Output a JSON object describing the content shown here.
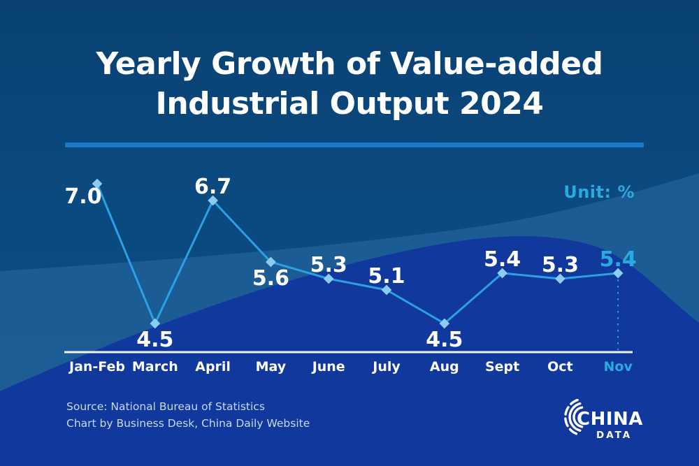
{
  "title": {
    "line1": "Yearly Growth of Value-added",
    "line2": "Industrial Output 2024"
  },
  "unit_label": "Unit: %",
  "chart_data": {
    "type": "line",
    "title": "Yearly Growth of Value-added Industrial Output 2024",
    "unit": "%",
    "categories": [
      "Jan-Feb",
      "March",
      "April",
      "May",
      "June",
      "July",
      "Aug",
      "Sept",
      "Oct",
      "Nov"
    ],
    "values": [
      7.0,
      4.5,
      6.7,
      5.6,
      5.3,
      5.1,
      4.5,
      5.4,
      5.3,
      5.4
    ],
    "display_values": [
      "7.0",
      "4.5",
      "6.7",
      "5.6",
      "5.3",
      "5.1",
      "4.5",
      "5.4",
      "5.3",
      "5.4"
    ],
    "label_positions": [
      "left",
      "below",
      "above",
      "below",
      "above",
      "above",
      "below",
      "above",
      "above",
      "above"
    ],
    "highlight_index": 9,
    "ylabel": "",
    "xlabel": "",
    "ylim_implied": [
      4.0,
      7.5
    ],
    "grid": false,
    "legend": "none",
    "marker_shape": "diamond",
    "last_point_callout": "dashed-drop-line"
  },
  "footer": {
    "source_line1": "Source: National Bureau of Statistics",
    "source_line2": "Chart by Business Desk, China Daily Website"
  },
  "logo": {
    "line1": "CHINA",
    "line2": "DATA"
  },
  "colors": {
    "background_top": "#094173",
    "background_mid": "#0b4a80",
    "background_bottom": "#0c4d86",
    "wave_steel": "#3b78b4",
    "wave_royal": "#10389d",
    "divider": "#1b7ac8",
    "accent_cyan": "#29abe2",
    "line": "#2aa1e2",
    "marker": "#8bcdf2",
    "axis": "#edf4fb",
    "label_white": "#ffffff",
    "footer_text": "#c7d9f1"
  }
}
